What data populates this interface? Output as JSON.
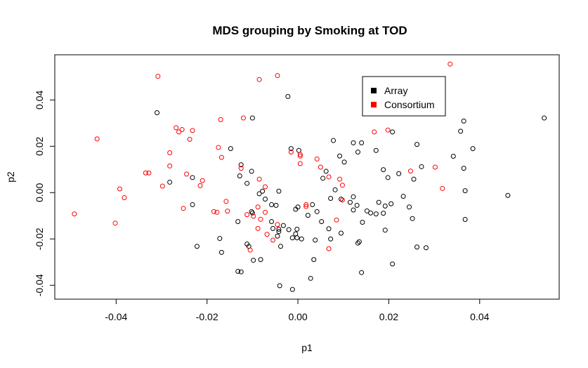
{
  "chart_data": {
    "type": "scatter",
    "title": "MDS grouping by Smoking at TOD",
    "xlabel": "p1",
    "ylabel": "p2",
    "xlim": [
      -0.0535,
      0.0575
    ],
    "ylim": [
      -0.046,
      0.0595
    ],
    "x_ticks": [
      -0.04,
      -0.02,
      0.0,
      0.02,
      0.04
    ],
    "x_tick_labels": [
      "-0.04",
      "-0.02",
      "0.00",
      "0.02",
      "0.04"
    ],
    "y_ticks": [
      -0.04,
      -0.02,
      0.0,
      0.02,
      0.04
    ],
    "y_tick_labels": [
      "-0.04",
      "-0.02",
      "0.00",
      "0.02",
      "0.04"
    ],
    "grid": false,
    "legend_position": "top-right",
    "legend": [
      {
        "label": "Array",
        "color": "#000000"
      },
      {
        "label": "Consortium",
        "color": "#ff0000"
      }
    ],
    "series": [
      {
        "name": "Array",
        "color": "#000000",
        "points": [
          [
            0.0542,
            0.0322
          ],
          [
            0.0365,
            0.0309
          ],
          [
            0.0358,
            0.0265
          ],
          [
            0.0385,
            0.019
          ],
          [
            0.0342,
            0.0157
          ],
          [
            0.0365,
            0.0105
          ],
          [
            0.0368,
            0.0008
          ],
          [
            0.0368,
            -0.0116
          ],
          [
            0.0462,
            -0.0012
          ],
          [
            0.0262,
            0.0208
          ],
          [
            0.0272,
            0.0112
          ],
          [
            0.0255,
            0.0058
          ],
          [
            0.0232,
            -0.0016
          ],
          [
            0.0245,
            -0.0062
          ],
          [
            0.0252,
            -0.0112
          ],
          [
            0.0262,
            -0.0235
          ],
          [
            0.0282,
            -0.0238
          ],
          [
            0.0208,
            0.0262
          ],
          [
            0.0222,
            0.0082
          ],
          [
            0.0198,
            0.0065
          ],
          [
            0.0205,
            -0.0048
          ],
          [
            0.0188,
            0.0099
          ],
          [
            0.0172,
            0.0182
          ],
          [
            0.0192,
            -0.0058
          ],
          [
            0.0188,
            -0.0089
          ],
          [
            0.0192,
            -0.0162
          ],
          [
            0.0178,
            -0.0042
          ],
          [
            0.0172,
            -0.0092
          ],
          [
            0.016,
            -0.0088
          ],
          [
            0.0152,
            -0.0079
          ],
          [
            0.0208,
            -0.0308
          ],
          [
            0.014,
            0.0215
          ],
          [
            0.0132,
            0.0175
          ],
          [
            0.0122,
            0.0215
          ],
          [
            0.0102,
            0.0132
          ],
          [
            0.0092,
            0.0158
          ],
          [
            0.0062,
            0.0092
          ],
          [
            0.0078,
            0.0225
          ],
          [
            0.0082,
            0.0012
          ],
          [
            0.0122,
            -0.0018
          ],
          [
            0.0072,
            -0.0025
          ],
          [
            0.0095,
            -0.0028
          ],
          [
            0.0115,
            -0.0042
          ],
          [
            0.013,
            -0.0055
          ],
          [
            0.0122,
            -0.0075
          ],
          [
            0.0142,
            -0.0128
          ],
          [
            0.0132,
            -0.0218
          ],
          [
            0.0135,
            -0.0212
          ],
          [
            0.014,
            -0.0345
          ],
          [
            0.0095,
            -0.0175
          ],
          [
            0.0072,
            -0.02
          ],
          [
            0.0068,
            -0.0156
          ],
          [
            0.0052,
            -0.0125
          ],
          [
            0.0055,
            0.0062
          ],
          [
            0.0042,
            -0.0082
          ],
          [
            0.0032,
            -0.0052
          ],
          [
            0.0022,
            -0.0098
          ],
          [
            0.0038,
            -0.0205
          ],
          [
            0.0035,
            -0.0289
          ],
          [
            0.0028,
            -0.037
          ],
          [
            -0.0015,
            0.019
          ],
          [
            -0.0022,
            0.0415
          ],
          [
            0.0002,
            0.0182
          ],
          [
            -0.0005,
            -0.0072
          ],
          [
            0.0,
            -0.0062
          ],
          [
            -0.0012,
            -0.0195
          ],
          [
            -0.0002,
            -0.0195
          ],
          [
            -0.0005,
            -0.0178
          ],
          [
            -0.0002,
            -0.0158
          ],
          [
            0.0008,
            -0.02
          ],
          [
            -0.002,
            -0.016
          ],
          [
            -0.0032,
            -0.0142
          ],
          [
            -0.0042,
            -0.0168
          ],
          [
            -0.0042,
            -0.0158
          ],
          [
            -0.0045,
            -0.0188
          ],
          [
            -0.0038,
            -0.0232
          ],
          [
            -0.0055,
            -0.0155
          ],
          [
            -0.0048,
            -0.0055
          ],
          [
            -0.0058,
            -0.0052
          ],
          [
            -0.0072,
            -0.0028
          ],
          [
            -0.0042,
            0.0006
          ],
          [
            -0.0078,
            0.0006
          ],
          [
            -0.0112,
            0.004
          ],
          [
            -0.0085,
            -0.0005
          ],
          [
            -0.0102,
            0.0092
          ],
          [
            -0.0125,
            0.012
          ],
          [
            -0.0128,
            0.0072
          ],
          [
            -0.01,
            -0.0088
          ],
          [
            -0.0102,
            -0.0082
          ],
          [
            -0.0132,
            -0.0125
          ],
          [
            -0.0112,
            -0.0222
          ],
          [
            -0.0108,
            -0.0232
          ],
          [
            -0.0098,
            -0.0292
          ],
          [
            -0.0082,
            -0.0289
          ],
          [
            -0.0132,
            -0.034
          ],
          [
            -0.0125,
            -0.0342
          ],
          [
            -0.004,
            -0.0402
          ],
          [
            -0.0012,
            -0.0418
          ],
          [
            -0.0058,
            -0.0125
          ],
          [
            -0.0148,
            0.019
          ],
          [
            -0.01,
            0.0322
          ],
          [
            -0.0172,
            -0.0198
          ],
          [
            -0.0168,
            -0.0258
          ],
          [
            -0.0222,
            -0.0232
          ],
          [
            -0.0232,
            -0.0052
          ],
          [
            -0.0232,
            0.0065
          ],
          [
            -0.031,
            0.0345
          ],
          [
            -0.0282,
            0.0045
          ]
        ]
      },
      {
        "name": "Consortium",
        "color": "#ff0000",
        "points": [
          [
            0.0335,
            0.0555
          ],
          [
            0.0302,
            0.011
          ],
          [
            0.0318,
            0.0018
          ],
          [
            0.0248,
            0.0093
          ],
          [
            0.0198,
            0.027
          ],
          [
            0.0168,
            0.0262
          ],
          [
            0.0098,
            -0.0032
          ],
          [
            0.0098,
            0.0032
          ],
          [
            0.0092,
            0.0058
          ],
          [
            0.0085,
            -0.0118
          ],
          [
            0.0068,
            0.0068
          ],
          [
            0.0068,
            -0.0242
          ],
          [
            0.005,
            0.011
          ],
          [
            0.0042,
            0.0145
          ],
          [
            0.0018,
            -0.0052
          ],
          [
            0.0018,
            -0.006
          ],
          [
            0.0005,
            0.0158
          ],
          [
            0.0005,
            0.0165
          ],
          [
            0.0005,
            0.0125
          ],
          [
            -0.0015,
            0.0175
          ],
          [
            -0.0045,
            0.0505
          ],
          [
            -0.0085,
            0.0488
          ],
          [
            -0.012,
            0.0322
          ],
          [
            -0.0125,
            0.0105
          ],
          [
            -0.0085,
            0.0058
          ],
          [
            -0.0072,
            0.0025
          ],
          [
            -0.0088,
            -0.0062
          ],
          [
            -0.0098,
            -0.0102
          ],
          [
            -0.0112,
            -0.0095
          ],
          [
            -0.0072,
            -0.0085
          ],
          [
            -0.0082,
            -0.0115
          ],
          [
            -0.0055,
            -0.0205
          ],
          [
            -0.0068,
            -0.018
          ],
          [
            -0.0088,
            -0.0155
          ],
          [
            -0.0045,
            -0.0138
          ],
          [
            -0.0105,
            -0.0248
          ],
          [
            -0.0155,
            -0.008
          ],
          [
            -0.0158,
            -0.0038
          ],
          [
            -0.0168,
            0.0152
          ],
          [
            -0.0175,
            0.0195
          ],
          [
            -0.017,
            0.0315
          ],
          [
            -0.0178,
            -0.0085
          ],
          [
            -0.0185,
            -0.0082
          ],
          [
            -0.021,
            0.0052
          ],
          [
            -0.0215,
            0.003
          ],
          [
            -0.0245,
            0.008
          ],
          [
            -0.0252,
            -0.0068
          ],
          [
            -0.0238,
            0.023
          ],
          [
            -0.0232,
            0.0268
          ],
          [
            -0.0255,
            0.0272
          ],
          [
            -0.0262,
            0.0262
          ],
          [
            -0.0268,
            0.028
          ],
          [
            -0.0282,
            0.0172
          ],
          [
            -0.0282,
            0.0115
          ],
          [
            -0.0298,
            0.0028
          ],
          [
            -0.0308,
            0.0502
          ],
          [
            -0.0328,
            0.0085
          ],
          [
            -0.0335,
            0.0085
          ],
          [
            -0.0392,
            0.0016
          ],
          [
            -0.0382,
            -0.0022
          ],
          [
            -0.0402,
            -0.0132
          ],
          [
            -0.0442,
            0.0232
          ],
          [
            -0.0492,
            -0.0092
          ]
        ]
      }
    ]
  }
}
